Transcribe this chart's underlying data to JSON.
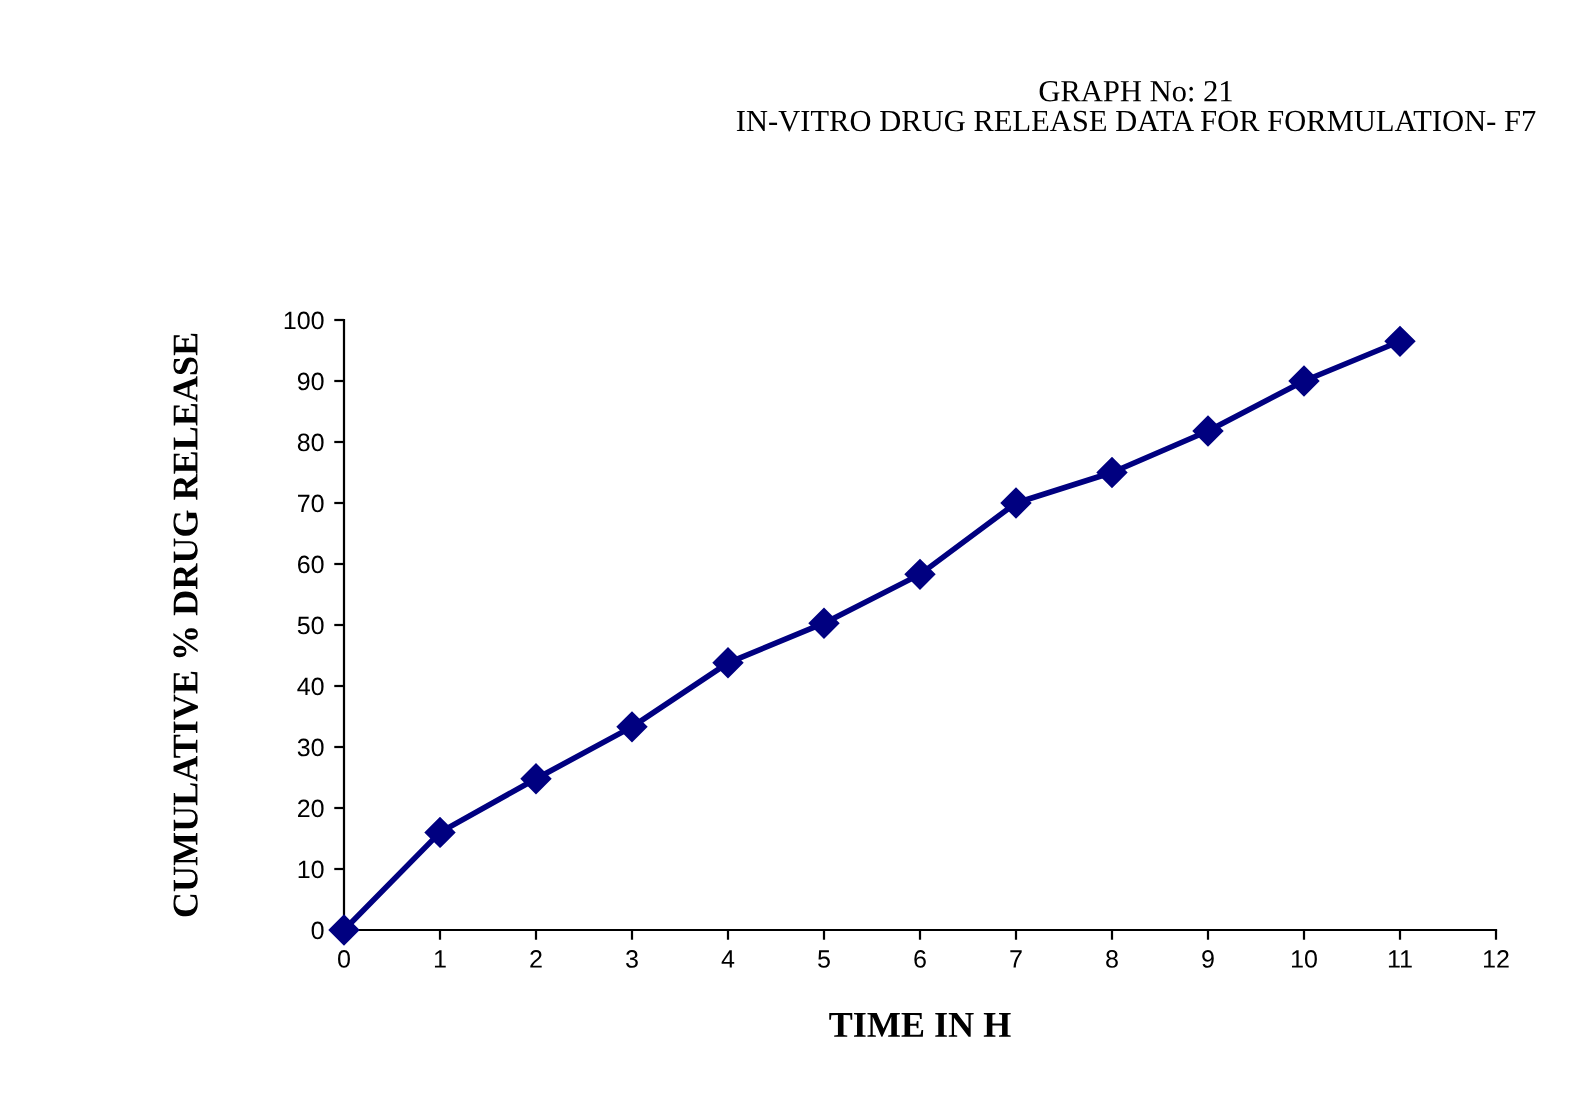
{
  "chart_data": {
    "type": "line",
    "title": "GRAPH No: 21\nIN-VITRO DRUG RELEASE DATA FOR FORMULATION- F7",
    "xlabel": "TIME IN H",
    "ylabel": "CUMULATIVE % DRUG RELEASE",
    "x": [
      0,
      1,
      2,
      3,
      4,
      5,
      6,
      7,
      8,
      9,
      10,
      11
    ],
    "series": [
      {
        "color": "#000080",
        "values": [
          0,
          16.0,
          24.8,
          33.3,
          43.8,
          50.3,
          58.3,
          70.0,
          75.0,
          81.8,
          90.0,
          96.5
        ]
      }
    ],
    "xlim": [
      0,
      12
    ],
    "xticks": [
      0,
      1,
      2,
      3,
      4,
      5,
      6,
      7,
      8,
      9,
      10,
      11,
      12
    ],
    "ylim": [
      0,
      100
    ],
    "yticks": [
      0,
      10,
      20,
      30,
      40,
      50,
      60,
      70,
      80,
      90,
      100
    ],
    "grid": false,
    "legend": false,
    "marker": "diamond",
    "line_style": "solid"
  }
}
